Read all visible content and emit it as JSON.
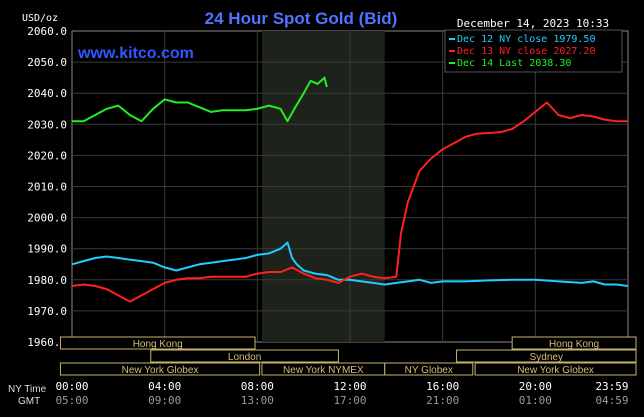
{
  "header": {
    "unit": "USD/oz",
    "title": "24 Hour Spot Gold (Bid)",
    "datetime": "December 14, 2023 10:33",
    "watermark": "www.kitco.com"
  },
  "legend": [
    {
      "label": "Dec 12 NY close 1979.50",
      "color": "#22ccff"
    },
    {
      "label": "Dec 13 NY close 2027.20",
      "color": "#ff2020"
    },
    {
      "label": "Dec 14 Last 2038.30",
      "color": "#22ee22"
    }
  ],
  "markets": {
    "row1": [
      "Hong Kong",
      "Hong Kong"
    ],
    "row2": [
      "London",
      "Sydney"
    ],
    "row3": [
      "New York Globex",
      "New York NYMEX",
      "NY Globex",
      "New York Globex"
    ]
  },
  "x_axis": {
    "ny_label": "NY Time",
    "gmt_label": "GMT",
    "ny_ticks": [
      "00:00",
      "04:00",
      "08:00",
      "12:00",
      "16:00",
      "20:00",
      "23:59"
    ],
    "gmt_ticks": [
      "05:00",
      "09:00",
      "13:00",
      "17:00",
      "21:00",
      "01:00",
      "04:59"
    ]
  },
  "chart_data": {
    "type": "line",
    "title": "24 Hour Spot Gold (Bid)",
    "ylabel": "USD/oz",
    "xlabel": "NY Time",
    "xlim": [
      0,
      24
    ],
    "ylim": [
      1960,
      2060
    ],
    "yticks": [
      "2060.0",
      "2050.0",
      "2040.0",
      "2030.0",
      "2020.0",
      "2010.0",
      "2000.0",
      "1990.0",
      "1980.0",
      "1970.0",
      "1960.0"
    ],
    "grid": true,
    "legend_position": "top-right",
    "series": [
      {
        "name": "Dec 12 NY close 1979.50",
        "color": "#22ccff",
        "points": [
          [
            0,
            1985
          ],
          [
            0.5,
            1986
          ],
          [
            1,
            1987
          ],
          [
            1.5,
            1987.5
          ],
          [
            2,
            1987
          ],
          [
            2.5,
            1986.5
          ],
          [
            3,
            1986
          ],
          [
            3.5,
            1985.5
          ],
          [
            4,
            1984
          ],
          [
            4.5,
            1983
          ],
          [
            5,
            1984
          ],
          [
            5.5,
            1985
          ],
          [
            6,
            1985.5
          ],
          [
            6.5,
            1986
          ],
          [
            7,
            1986.5
          ],
          [
            7.5,
            1987
          ],
          [
            8,
            1988
          ],
          [
            8.5,
            1988.5
          ],
          [
            9,
            1990
          ],
          [
            9.3,
            1992
          ],
          [
            9.5,
            1987
          ],
          [
            9.7,
            1985
          ],
          [
            10,
            1983
          ],
          [
            10.5,
            1982
          ],
          [
            11,
            1981.5
          ],
          [
            11.5,
            1980
          ],
          [
            12,
            1980
          ],
          [
            12.5,
            1979.5
          ],
          [
            13,
            1979
          ],
          [
            13.5,
            1978.5
          ],
          [
            14,
            1979
          ],
          [
            14.5,
            1979.5
          ],
          [
            15,
            1980
          ],
          [
            15.5,
            1979
          ],
          [
            16,
            1979.5
          ],
          [
            17,
            1979.5
          ],
          [
            18,
            1979.8
          ],
          [
            19,
            1980
          ],
          [
            20,
            1980
          ],
          [
            21,
            1979.5
          ],
          [
            22,
            1979
          ],
          [
            22.5,
            1979.5
          ],
          [
            23,
            1978.5
          ],
          [
            23.5,
            1978.5
          ],
          [
            24,
            1978
          ]
        ]
      },
      {
        "name": "Dec 13 NY close 2027.20",
        "color": "#ff2020",
        "points": [
          [
            0,
            1978
          ],
          [
            0.5,
            1978.5
          ],
          [
            1,
            1978
          ],
          [
            1.5,
            1977
          ],
          [
            2,
            1975
          ],
          [
            2.5,
            1973
          ],
          [
            3,
            1975
          ],
          [
            3.5,
            1977
          ],
          [
            4,
            1979
          ],
          [
            4.5,
            1980
          ],
          [
            5,
            1980.5
          ],
          [
            5.5,
            1980.5
          ],
          [
            6,
            1981
          ],
          [
            6.5,
            1981
          ],
          [
            7,
            1981
          ],
          [
            7.5,
            1981
          ],
          [
            8,
            1982
          ],
          [
            8.5,
            1982.5
          ],
          [
            9,
            1982.5
          ],
          [
            9.5,
            1984
          ],
          [
            10,
            1982
          ],
          [
            10.5,
            1980.5
          ],
          [
            11,
            1980
          ],
          [
            11.5,
            1979
          ],
          [
            12,
            1981
          ],
          [
            12.5,
            1982
          ],
          [
            13,
            1981
          ],
          [
            13.5,
            1980.5
          ],
          [
            14,
            1981
          ],
          [
            14.2,
            1995
          ],
          [
            14.5,
            2005
          ],
          [
            15,
            2015
          ],
          [
            15.5,
            2019
          ],
          [
            16,
            2022
          ],
          [
            16.5,
            2024
          ],
          [
            17,
            2026
          ],
          [
            17.5,
            2027
          ],
          [
            18,
            2027.2
          ],
          [
            18.5,
            2027.5
          ],
          [
            19,
            2028.5
          ],
          [
            19.5,
            2031
          ],
          [
            20,
            2034
          ],
          [
            20.5,
            2037
          ],
          [
            21,
            2033
          ],
          [
            21.5,
            2032
          ],
          [
            22,
            2033
          ],
          [
            22.5,
            2032.5
          ],
          [
            23,
            2031.5
          ],
          [
            23.5,
            2031
          ],
          [
            24,
            2031
          ]
        ]
      },
      {
        "name": "Dec 14 Last 2038.30",
        "color": "#22ee22",
        "points": [
          [
            0,
            2031
          ],
          [
            0.5,
            2031
          ],
          [
            1,
            2033
          ],
          [
            1.5,
            2035
          ],
          [
            2,
            2036
          ],
          [
            2.5,
            2033
          ],
          [
            3,
            2031
          ],
          [
            3.5,
            2035
          ],
          [
            4,
            2038
          ],
          [
            4.5,
            2037
          ],
          [
            5,
            2037
          ],
          [
            5.5,
            2035.5
          ],
          [
            6,
            2034
          ],
          [
            6.5,
            2034.5
          ],
          [
            7,
            2034.5
          ],
          [
            7.5,
            2034.5
          ],
          [
            8,
            2035
          ],
          [
            8.5,
            2036
          ],
          [
            9,
            2035
          ],
          [
            9.3,
            2031
          ],
          [
            9.6,
            2035
          ],
          [
            10,
            2040
          ],
          [
            10.3,
            2044
          ],
          [
            10.6,
            2043
          ],
          [
            10.9,
            2045
          ],
          [
            11,
            2042
          ]
        ]
      }
    ]
  }
}
